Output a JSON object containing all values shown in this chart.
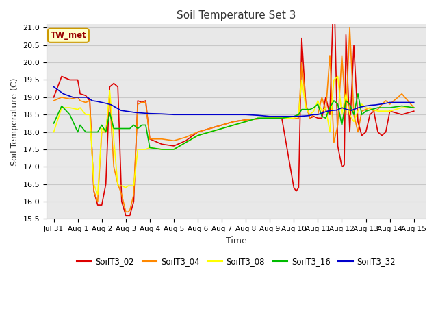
{
  "title": "Soil Temperature Set 3",
  "xlabel": "Time",
  "ylabel": "Soil Temperature (C)",
  "ylim": [
    15.5,
    21.1
  ],
  "xlim": [
    -0.3,
    15.5
  ],
  "xtick_labels": [
    "Jul 31",
    "Aug 1",
    "Aug 2",
    "Aug 3",
    "Aug 4",
    "Aug 5",
    "Aug 6",
    "Aug 7",
    "Aug 8",
    "Aug 9",
    "Aug 10",
    "Aug 11",
    "Aug 12",
    "Aug 13",
    "Aug 14",
    "Aug 15"
  ],
  "xtick_positions": [
    0,
    1,
    2,
    3,
    4,
    5,
    6,
    7,
    8,
    9,
    10,
    11,
    12,
    13,
    14,
    15
  ],
  "ytick_positions": [
    15.5,
    16.0,
    16.5,
    17.0,
    17.5,
    18.0,
    18.5,
    19.0,
    19.5,
    20.0,
    20.5,
    21.0
  ],
  "fig_bg_color": "#ffffff",
  "ax_bg_color": "#e8e8e8",
  "grid_color": "#d0d0d0",
  "legend_label": "TW_met",
  "series": {
    "SoilT3_02": {
      "color": "#dd0000",
      "x": [
        0.0,
        0.33,
        0.67,
        1.0,
        1.1,
        1.33,
        1.5,
        1.67,
        1.83,
        2.0,
        2.17,
        2.33,
        2.5,
        2.67,
        2.83,
        3.0,
        3.1,
        3.17,
        3.33,
        3.5,
        3.67,
        3.83,
        4.0,
        4.5,
        5.0,
        5.5,
        6.0,
        6.5,
        7.0,
        7.5,
        8.0,
        8.5,
        9.0,
        9.5,
        10.0,
        10.1,
        10.2,
        10.33,
        10.5,
        10.67,
        10.83,
        11.0,
        11.17,
        11.33,
        11.5,
        11.67,
        11.83,
        12.0,
        12.1,
        12.17,
        12.33,
        12.5,
        12.67,
        12.83,
        13.0,
        13.17,
        13.33,
        13.5,
        13.67,
        13.83,
        14.0,
        14.5,
        15.0
      ],
      "y": [
        19.0,
        19.6,
        19.5,
        19.5,
        19.1,
        19.05,
        18.9,
        16.3,
        15.9,
        15.9,
        16.5,
        19.3,
        19.4,
        19.3,
        16.0,
        15.6,
        15.6,
        15.6,
        16.0,
        18.9,
        18.85,
        18.9,
        17.8,
        17.65,
        17.6,
        17.75,
        18.0,
        18.1,
        18.2,
        18.3,
        18.35,
        18.38,
        18.4,
        18.4,
        16.4,
        16.3,
        16.4,
        20.7,
        18.8,
        18.4,
        18.45,
        18.4,
        18.4,
        19.0,
        18.5,
        22.3,
        17.6,
        17.0,
        17.05,
        20.8,
        18.0,
        20.5,
        18.3,
        17.9,
        18.0,
        18.5,
        18.6,
        18.0,
        17.9,
        18.0,
        18.6,
        18.5,
        18.6
      ]
    },
    "SoilT3_04": {
      "color": "#ff8800",
      "x": [
        0.0,
        0.33,
        0.67,
        1.0,
        1.1,
        1.33,
        1.5,
        1.67,
        1.83,
        2.0,
        2.17,
        2.33,
        2.5,
        2.67,
        2.83,
        3.0,
        3.1,
        3.17,
        3.33,
        3.5,
        3.67,
        3.83,
        4.0,
        4.5,
        5.0,
        5.5,
        6.0,
        6.5,
        7.0,
        7.5,
        8.0,
        8.5,
        9.0,
        9.5,
        10.0,
        10.2,
        10.33,
        10.5,
        10.67,
        10.83,
        11.0,
        11.17,
        11.33,
        11.5,
        11.67,
        11.83,
        12.0,
        12.17,
        12.33,
        12.5,
        12.67,
        12.83,
        13.0,
        13.17,
        13.33,
        13.5,
        13.67,
        13.83,
        14.0,
        14.5,
        15.0
      ],
      "y": [
        18.9,
        19.0,
        18.95,
        19.0,
        18.9,
        18.85,
        18.9,
        16.3,
        16.0,
        18.0,
        18.0,
        19.0,
        17.0,
        16.5,
        16.2,
        15.7,
        15.7,
        15.75,
        16.2,
        18.8,
        18.85,
        18.85,
        17.8,
        17.8,
        17.75,
        17.85,
        18.0,
        18.1,
        18.2,
        18.3,
        18.35,
        18.38,
        18.4,
        18.4,
        18.38,
        18.4,
        20.0,
        18.8,
        18.4,
        18.5,
        18.5,
        19.0,
        18.6,
        20.2,
        17.7,
        18.2,
        20.2,
        18.5,
        21.0,
        18.5,
        18.0,
        18.6,
        18.65,
        18.7,
        18.6,
        18.65,
        18.8,
        18.9,
        18.8,
        19.1,
        18.7
      ]
    },
    "SoilT3_08": {
      "color": "#ffff00",
      "x": [
        0.0,
        0.33,
        0.67,
        1.0,
        1.1,
        1.33,
        1.5,
        1.67,
        1.83,
        2.0,
        2.17,
        2.33,
        2.5,
        2.67,
        2.83,
        3.0,
        3.1,
        3.17,
        3.33,
        3.5,
        3.67,
        3.83,
        4.0,
        4.5,
        5.0,
        5.5,
        6.0,
        6.5,
        7.0,
        7.5,
        8.0,
        8.5,
        9.0,
        9.5,
        10.0,
        10.2,
        10.33,
        10.5,
        10.67,
        10.83,
        11.0,
        11.17,
        11.33,
        11.5,
        11.67,
        11.83,
        12.0,
        12.17,
        12.33,
        12.5,
        12.67,
        12.83,
        13.0,
        13.5,
        14.0,
        14.5,
        15.0
      ],
      "y": [
        18.0,
        18.7,
        18.7,
        18.65,
        18.7,
        18.5,
        18.5,
        16.5,
        16.2,
        18.1,
        18.0,
        19.2,
        17.8,
        16.45,
        16.45,
        16.4,
        16.45,
        16.45,
        16.45,
        17.5,
        17.5,
        17.5,
        17.55,
        17.5,
        17.5,
        17.7,
        17.9,
        18.0,
        18.1,
        18.2,
        18.3,
        18.4,
        18.4,
        18.4,
        18.4,
        18.5,
        19.5,
        18.7,
        18.5,
        18.6,
        18.9,
        18.6,
        18.7,
        18.0,
        19.5,
        19.6,
        18.5,
        19.1,
        18.5,
        18.3,
        18.6,
        18.8,
        18.7,
        18.6,
        18.6,
        18.7,
        18.7
      ]
    },
    "SoilT3_16": {
      "color": "#00bb00",
      "x": [
        0.0,
        0.33,
        0.67,
        1.0,
        1.1,
        1.33,
        1.5,
        1.67,
        1.83,
        2.0,
        2.17,
        2.33,
        2.5,
        2.67,
        2.83,
        3.0,
        3.17,
        3.33,
        3.5,
        3.67,
        3.83,
        4.0,
        4.5,
        5.0,
        5.5,
        6.0,
        6.5,
        7.0,
        7.5,
        8.0,
        8.5,
        9.0,
        9.5,
        10.0,
        10.2,
        10.33,
        10.5,
        10.67,
        10.83,
        11.0,
        11.17,
        11.33,
        11.5,
        11.67,
        11.83,
        12.0,
        12.17,
        12.33,
        12.5,
        12.67,
        12.83,
        13.0,
        13.5,
        14.0,
        14.5,
        15.0
      ],
      "y": [
        18.25,
        18.75,
        18.5,
        18.0,
        18.2,
        18.0,
        18.0,
        18.0,
        18.0,
        18.2,
        18.0,
        18.55,
        18.1,
        18.1,
        18.1,
        18.1,
        18.1,
        18.2,
        18.1,
        18.2,
        18.2,
        17.55,
        17.5,
        17.5,
        17.7,
        17.9,
        18.0,
        18.1,
        18.2,
        18.3,
        18.4,
        18.4,
        18.4,
        18.45,
        18.5,
        18.65,
        18.65,
        18.65,
        18.7,
        18.8,
        18.45,
        18.4,
        18.7,
        18.9,
        18.8,
        18.2,
        18.9,
        18.8,
        18.5,
        19.1,
        18.5,
        18.6,
        18.7,
        18.7,
        18.75,
        18.7
      ]
    },
    "SoilT3_32": {
      "color": "#0000cc",
      "x": [
        0.0,
        0.2,
        0.4,
        0.6,
        0.8,
        1.0,
        1.2,
        1.4,
        1.6,
        1.8,
        2.0,
        2.2,
        2.4,
        2.6,
        2.8,
        3.0,
        3.2,
        3.4,
        3.6,
        3.8,
        4.0,
        4.5,
        5.0,
        5.5,
        6.0,
        6.5,
        7.0,
        7.5,
        8.0,
        8.5,
        9.0,
        9.5,
        10.0,
        10.2,
        10.4,
        10.6,
        10.8,
        11.0,
        11.2,
        11.4,
        11.6,
        11.8,
        12.0,
        12.2,
        12.4,
        12.6,
        12.8,
        13.0,
        13.2,
        13.4,
        13.6,
        13.8,
        14.0,
        14.2,
        14.4,
        14.6,
        14.8,
        15.0
      ],
      "y": [
        19.3,
        19.2,
        19.1,
        19.05,
        19.0,
        19.0,
        19.0,
        19.0,
        18.9,
        18.88,
        18.85,
        18.82,
        18.78,
        18.7,
        18.62,
        18.6,
        18.58,
        18.56,
        18.55,
        18.54,
        18.53,
        18.52,
        18.5,
        18.5,
        18.5,
        18.5,
        18.5,
        18.5,
        18.5,
        18.48,
        18.45,
        18.45,
        18.45,
        18.45,
        18.46,
        18.47,
        18.5,
        18.5,
        18.55,
        18.6,
        18.62,
        18.63,
        18.7,
        18.65,
        18.62,
        18.68,
        18.72,
        18.75,
        18.77,
        18.78,
        18.8,
        18.82,
        18.85,
        18.85,
        18.85,
        18.85,
        18.85,
        18.85
      ]
    }
  }
}
